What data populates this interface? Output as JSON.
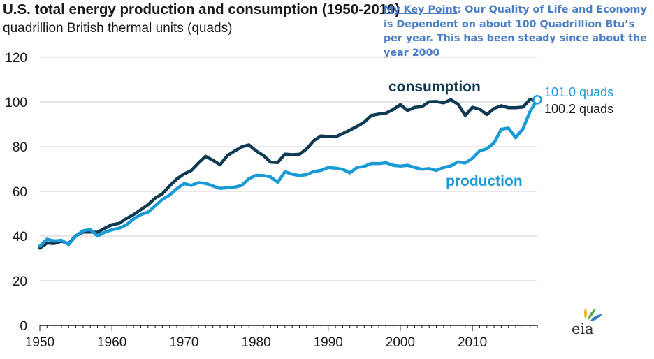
{
  "chart_data": {
    "type": "line",
    "title": "U.S. total energy production and consumption (1950-2019)",
    "subtitle": "quadrillion British thermal units (quads)",
    "xlabel": "",
    "ylabel": "",
    "xlim": [
      1950,
      2019
    ],
    "ylim": [
      0,
      120
    ],
    "x_ticks": [
      "1950",
      "1960",
      "1970",
      "1980",
      "1990",
      "2000",
      "2010"
    ],
    "y_ticks": [
      "0",
      "20",
      "40",
      "60",
      "80",
      "100",
      "120"
    ],
    "grid": "horizontal",
    "x": [
      1950,
      1951,
      1952,
      1953,
      1954,
      1955,
      1956,
      1957,
      1958,
      1959,
      1960,
      1961,
      1962,
      1963,
      1964,
      1965,
      1966,
      1967,
      1968,
      1969,
      1970,
      1971,
      1972,
      1973,
      1974,
      1975,
      1976,
      1977,
      1978,
      1979,
      1980,
      1981,
      1982,
      1983,
      1984,
      1985,
      1986,
      1987,
      1988,
      1989,
      1990,
      1991,
      1992,
      1993,
      1994,
      1995,
      1996,
      1997,
      1998,
      1999,
      2000,
      2001,
      2002,
      2003,
      2004,
      2005,
      2006,
      2007,
      2008,
      2009,
      2010,
      2011,
      2012,
      2013,
      2014,
      2015,
      2016,
      2017,
      2018,
      2019
    ],
    "series": [
      {
        "name": "consumption",
        "color": "#0e3a52",
        "values": [
          34.6,
          36.9,
          36.7,
          37.7,
          36.6,
          40.2,
          41.8,
          41.8,
          41.7,
          43.5,
          45.1,
          45.7,
          47.8,
          49.6,
          51.8,
          54.0,
          57.0,
          58.9,
          62.4,
          65.6,
          67.8,
          69.3,
          72.7,
          75.7,
          73.9,
          71.9,
          76.0,
          78.0,
          79.9,
          80.8,
          78.1,
          76.1,
          73.1,
          72.9,
          76.7,
          76.4,
          76.6,
          79.0,
          82.7,
          84.8,
          84.5,
          84.4,
          85.8,
          87.4,
          89.1,
          91.0,
          94.0,
          94.6,
          95.0,
          96.6,
          98.8,
          96.2,
          97.6,
          97.9,
          100.1,
          100.2,
          99.6,
          101.0,
          99.0,
          94.0,
          97.6,
          96.8,
          94.4,
          97.1,
          98.3,
          97.4,
          97.4,
          97.7,
          101.2,
          100.2
        ]
      },
      {
        "name": "production",
        "color": "#1a9bd7",
        "values": [
          35.5,
          38.6,
          37.8,
          38.1,
          36.2,
          40.0,
          42.4,
          42.9,
          40.0,
          41.7,
          42.8,
          43.5,
          45.0,
          47.7,
          49.6,
          50.7,
          53.5,
          56.4,
          58.3,
          61.2,
          63.5,
          62.7,
          63.9,
          63.6,
          62.4,
          61.3,
          61.6,
          61.9,
          62.7,
          65.7,
          67.2,
          67.1,
          66.5,
          64.1,
          68.8,
          67.7,
          67.1,
          67.5,
          68.9,
          69.4,
          70.7,
          70.4,
          69.9,
          68.3,
          70.7,
          71.2,
          72.5,
          72.4,
          72.8,
          71.7,
          71.3,
          71.7,
          70.7,
          69.9,
          70.2,
          69.4,
          70.7,
          71.4,
          73.2,
          72.7,
          74.8,
          78.1,
          79.1,
          81.7,
          87.8,
          88.3,
          84.0,
          88.0,
          95.8,
          101.0
        ]
      }
    ],
    "series_labels": {
      "consumption": "consumption",
      "production": "production"
    },
    "end_labels": {
      "production": "101.0 quads",
      "consumption": "100.2 quads"
    },
    "annotation": {
      "lead": "My Key Point",
      "text": ": Our Quality of Life and Economy is Dependent on about 100 Quadrillion Btu’s per year. This has been steady since about the year 2000"
    },
    "logo_text": "eia"
  }
}
